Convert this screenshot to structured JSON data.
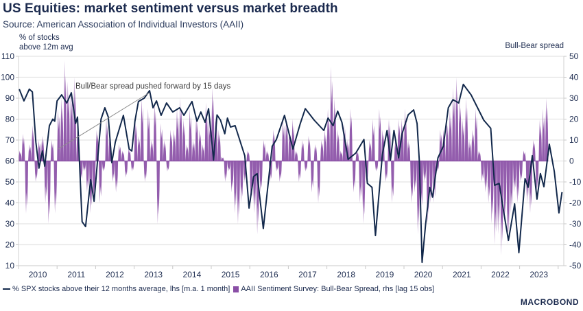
{
  "header": {
    "title": "US Equities: market sentiment versus market breadth",
    "subtitle": "Source: American Association of Individual Investors (AAII)"
  },
  "axes": {
    "left_label_line1": "% of stocks",
    "left_label_line2": "above 12m avg",
    "right_label": "Bull-Bear spread"
  },
  "legend": {
    "line_label": "% SPX stocks above their 12 months average, lhs [m.a. 1 month]",
    "bar_label": "AAII Sentiment Survey: Bull-Bear Spread, rhs [lag 15 obs]"
  },
  "logo": "MACROBOND",
  "annotation": "Bull/Bear spread pushed forward by 15 days",
  "colors": {
    "line": "#12284b",
    "bars": "#8a4fa6",
    "grid": "#e4e4e4",
    "annotation_line": "#8c8c8c"
  },
  "chart_data": {
    "type": "bar+line",
    "title": "US Equities: market sentiment versus market breadth",
    "x_ticks": [
      "2010",
      "2011",
      "2012",
      "2013",
      "2014",
      "2015",
      "2016",
      "2017",
      "2018",
      "2019",
      "2020",
      "2021",
      "2022",
      "2023"
    ],
    "x_range": [
      2010.0,
      2024.15
    ],
    "left_axis": {
      "label": "% of stocks above 12m avg",
      "range": [
        10,
        110
      ],
      "ticks": [
        10,
        20,
        30,
        40,
        50,
        60,
        70,
        80,
        90,
        100,
        110
      ]
    },
    "right_axis": {
      "label": "Bull-Bear spread",
      "range": [
        -50,
        50
      ],
      "ticks": [
        -50,
        -40,
        -30,
        -20,
        -10,
        0,
        10,
        20,
        30,
        40,
        50
      ]
    },
    "grid": true,
    "legend_position": "bottom-left",
    "series": [
      {
        "name": "% SPX stocks above their 12 months average, lhs [m.a. 1 month]",
        "type": "line",
        "axis": "left",
        "points": [
          [
            2010.02,
            94.3
          ],
          [
            2010.14,
            88.7
          ],
          [
            2010.28,
            94.3
          ],
          [
            2010.36,
            93.0
          ],
          [
            2010.45,
            69.0
          ],
          [
            2010.53,
            56.6
          ],
          [
            2010.62,
            64.8
          ],
          [
            2010.68,
            57.5
          ],
          [
            2010.8,
            76.9
          ],
          [
            2010.89,
            80.0
          ],
          [
            2010.94,
            79.0
          ],
          [
            2011.0,
            88.7
          ],
          [
            2011.12,
            91.6
          ],
          [
            2011.25,
            87.7
          ],
          [
            2011.37,
            92.6
          ],
          [
            2011.48,
            77.9
          ],
          [
            2011.53,
            81.0
          ],
          [
            2011.65,
            31.0
          ],
          [
            2011.74,
            28.7
          ],
          [
            2011.87,
            51.0
          ],
          [
            2011.96,
            40.8
          ],
          [
            2012.14,
            80.0
          ],
          [
            2012.24,
            85.4
          ],
          [
            2012.33,
            81.0
          ],
          [
            2012.42,
            59.2
          ],
          [
            2012.51,
            69.0
          ],
          [
            2012.72,
            81.8
          ],
          [
            2012.87,
            65.7
          ],
          [
            2012.94,
            64.8
          ],
          [
            2013.02,
            79.0
          ],
          [
            2013.11,
            88.4
          ],
          [
            2013.26,
            90.0
          ],
          [
            2013.4,
            93.6
          ],
          [
            2013.49,
            85.4
          ],
          [
            2013.58,
            88.7
          ],
          [
            2013.7,
            81.8
          ],
          [
            2013.84,
            87.7
          ],
          [
            2014.0,
            83.4
          ],
          [
            2014.18,
            85.4
          ],
          [
            2014.29,
            81.8
          ],
          [
            2014.5,
            88.4
          ],
          [
            2014.63,
            79.0
          ],
          [
            2014.73,
            83.4
          ],
          [
            2014.84,
            78.5
          ],
          [
            2014.93,
            85.0
          ],
          [
            2015.06,
            60.5
          ],
          [
            2015.15,
            82.0
          ],
          [
            2015.24,
            79.5
          ],
          [
            2015.35,
            73.0
          ],
          [
            2015.42,
            80.5
          ],
          [
            2015.5,
            76.2
          ],
          [
            2015.62,
            76.9
          ],
          [
            2015.87,
            62.5
          ],
          [
            2015.98,
            37.5
          ],
          [
            2016.1,
            52.6
          ],
          [
            2016.19,
            54.0
          ],
          [
            2016.35,
            27.7
          ],
          [
            2016.58,
            67.0
          ],
          [
            2016.69,
            70.3
          ],
          [
            2016.9,
            81.8
          ],
          [
            2017.12,
            65.7
          ],
          [
            2017.31,
            77.9
          ],
          [
            2017.44,
            85.0
          ],
          [
            2017.67,
            79.5
          ],
          [
            2017.92,
            74.6
          ],
          [
            2018.03,
            80.5
          ],
          [
            2018.16,
            76.9
          ],
          [
            2018.28,
            83.8
          ],
          [
            2018.39,
            78.5
          ],
          [
            2018.55,
            60.8
          ],
          [
            2018.75,
            63.8
          ],
          [
            2018.96,
            70.3
          ],
          [
            2019.05,
            49.3
          ],
          [
            2019.17,
            47.4
          ],
          [
            2019.26,
            24.4
          ],
          [
            2019.44,
            63.1
          ],
          [
            2019.56,
            74.6
          ],
          [
            2019.65,
            60.5
          ],
          [
            2019.74,
            74.6
          ],
          [
            2019.86,
            61.5
          ],
          [
            2019.95,
            73.0
          ],
          [
            2020.11,
            82.1
          ],
          [
            2020.25,
            84.4
          ],
          [
            2020.34,
            77.9
          ],
          [
            2020.4,
            59.2
          ],
          [
            2020.47,
            11.6
          ],
          [
            2020.56,
            29.7
          ],
          [
            2020.67,
            47.4
          ],
          [
            2020.74,
            42.8
          ],
          [
            2020.88,
            61.5
          ],
          [
            2021.02,
            67.0
          ],
          [
            2021.15,
            85.4
          ],
          [
            2021.27,
            89.3
          ],
          [
            2021.42,
            87.7
          ],
          [
            2021.54,
            96.6
          ],
          [
            2021.74,
            91.6
          ],
          [
            2021.91,
            85.4
          ],
          [
            2022.07,
            79.5
          ],
          [
            2022.25,
            75.6
          ],
          [
            2022.35,
            48.4
          ],
          [
            2022.47,
            49.3
          ],
          [
            2022.6,
            34.3
          ],
          [
            2022.71,
            22.1
          ],
          [
            2022.87,
            39.5
          ],
          [
            2022.98,
            16.2
          ],
          [
            2023.14,
            51.6
          ],
          [
            2023.22,
            47.4
          ],
          [
            2023.33,
            62.5
          ],
          [
            2023.45,
            41.8
          ],
          [
            2023.54,
            54.0
          ],
          [
            2023.63,
            47.7
          ],
          [
            2023.77,
            68.0
          ],
          [
            2023.9,
            54.9
          ],
          [
            2024.02,
            35.2
          ],
          [
            2024.1,
            45.1
          ]
        ]
      },
      {
        "name": "AAII Sentiment Survey: Bull-Bear Spread, rhs [lag 15 obs]",
        "type": "bar",
        "axis": "right",
        "start": 2010.0,
        "step_years": 0.0833,
        "values": [
          5,
          13,
          -25,
          8,
          17,
          -10,
          10,
          12,
          -20,
          -30,
          10,
          -25,
          25,
          30,
          48,
          38,
          35,
          40,
          15,
          -10,
          -5,
          -15,
          -25,
          -20,
          15,
          -20,
          -5,
          20,
          12,
          -10,
          -15,
          8,
          5,
          -8,
          6,
          -5,
          20,
          12,
          30,
          -10,
          25,
          10,
          28,
          -30,
          18,
          10,
          -5,
          15,
          15,
          25,
          30,
          20,
          8,
          25,
          10,
          22,
          15,
          8,
          28,
          20,
          35,
          22,
          15,
          2,
          -10,
          -5,
          -15,
          -25,
          -30,
          -20,
          -10,
          5,
          -20,
          -25,
          -35,
          -15,
          10,
          5,
          -10,
          15,
          -5,
          -10,
          20,
          20,
          15,
          20,
          5,
          -10,
          10,
          -5,
          12,
          -15,
          8,
          -20,
          10,
          15,
          25,
          45,
          30,
          15,
          5,
          18,
          10,
          25,
          -15,
          5,
          -20,
          -30,
          -10,
          10,
          20,
          -5,
          25,
          15,
          -10,
          20,
          -20,
          10,
          20,
          20,
          25,
          10,
          -20,
          -15,
          -35,
          -25,
          -10,
          -30,
          -20,
          -20,
          -5,
          15,
          15,
          20,
          25,
          35,
          40,
          30,
          20,
          30,
          10,
          15,
          25,
          5,
          -10,
          -15,
          -20,
          -30,
          -40,
          -35,
          -45,
          -30,
          -40,
          -25,
          -15,
          -20,
          -10,
          5,
          -20,
          -25,
          10,
          -15,
          20,
          25,
          30
        ]
      }
    ],
    "annotations": [
      "Bull/Bear spread pushed forward by 15 days"
    ]
  }
}
